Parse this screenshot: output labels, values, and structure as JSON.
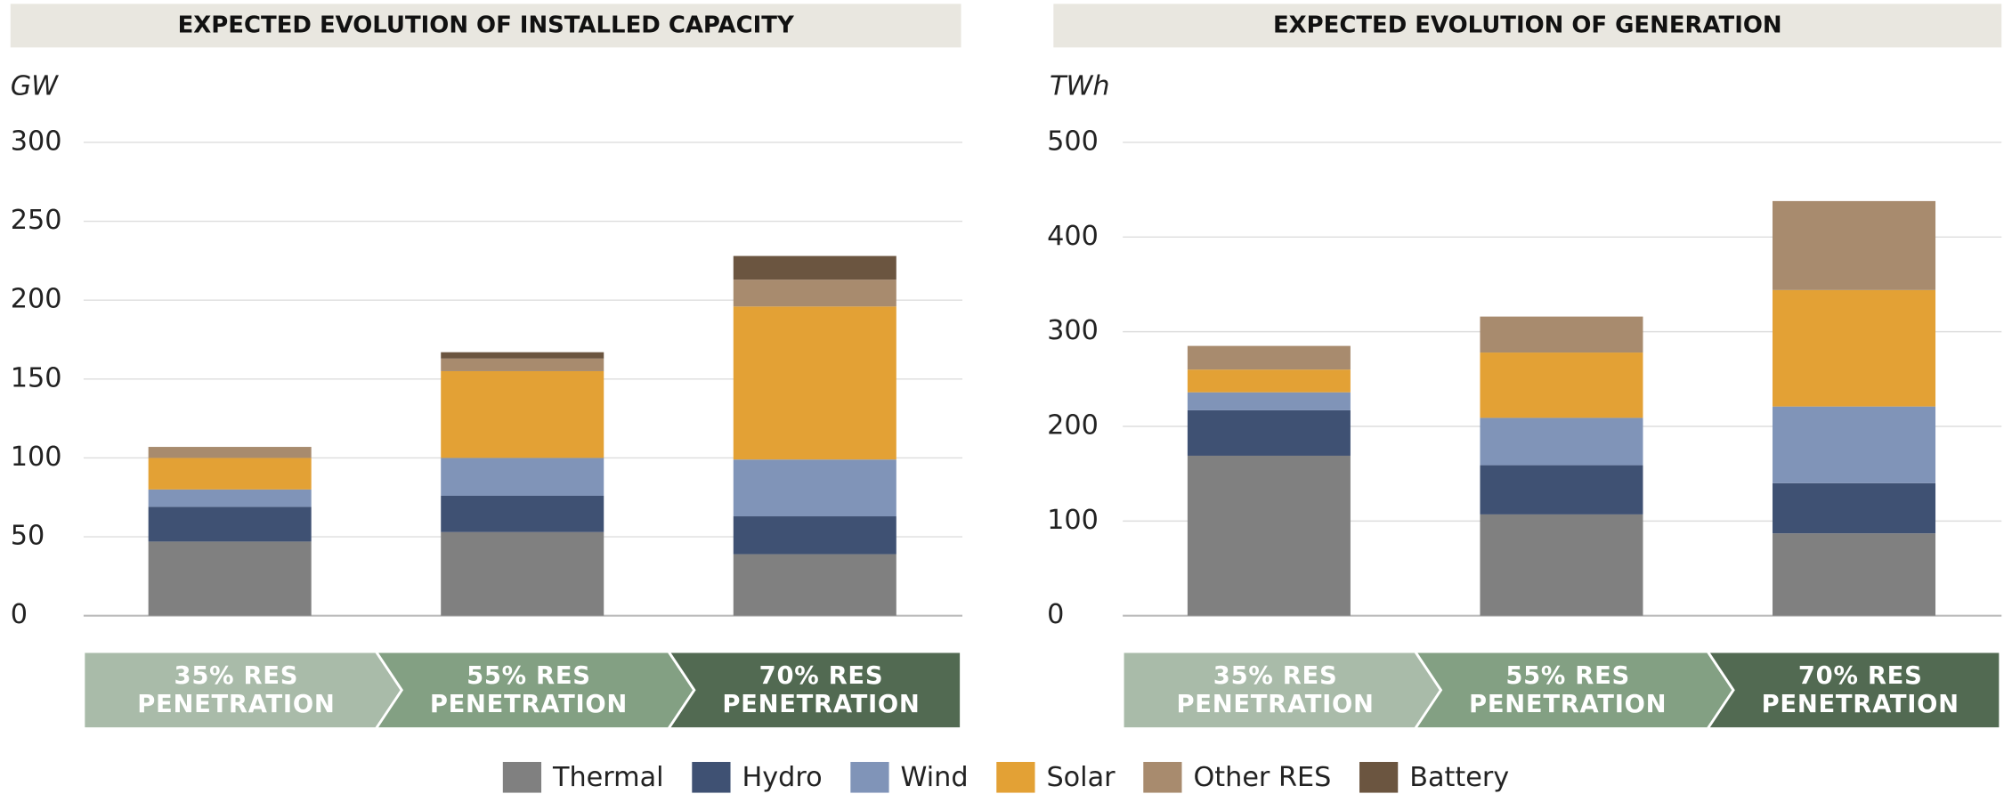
{
  "chart_data": [
    {
      "type": "bar",
      "stacked": true,
      "title": "EXPECTED EVOLUTION OF INSTALLED CAPACITY",
      "y_label": "GW",
      "categories": [
        "35% RES\nPENETRATION",
        "55% RES\nPENETRATION",
        "70% RES\nPENETRATION"
      ],
      "category_colors": [
        "#a9bba9",
        "#83a083",
        "#526a52"
      ],
      "series": [
        {
          "name": "Thermal",
          "color": "#808080",
          "values": [
            47,
            53,
            39
          ]
        },
        {
          "name": "Hydro",
          "color": "#3f5173",
          "values": [
            22,
            23,
            24
          ]
        },
        {
          "name": "Wind",
          "color": "#8094b8",
          "values": [
            11,
            24,
            36
          ]
        },
        {
          "name": "Solar",
          "color": "#e3a135",
          "values": [
            20,
            55,
            97
          ]
        },
        {
          "name": "Other RES",
          "color": "#a88b6e",
          "values": [
            7,
            8,
            17
          ]
        },
        {
          "name": "Battery",
          "color": "#6b5540",
          "values": [
            0,
            4,
            15
          ]
        }
      ],
      "ylim": [
        0,
        300
      ],
      "yticks": [
        0,
        50,
        100,
        150,
        200,
        250,
        300
      ],
      "grid": true
    },
    {
      "type": "bar",
      "stacked": true,
      "title": "EXPECTED EVOLUTION OF GENERATION",
      "y_label": "TWh",
      "categories": [
        "35% RES\nPENETRATION",
        "55% RES\nPENETRATION",
        "70% RES\nPENETRATION"
      ],
      "category_colors": [
        "#a9bba9",
        "#83a083",
        "#526a52"
      ],
      "series": [
        {
          "name": "Thermal",
          "color": "#808080",
          "values": [
            169,
            107,
            87
          ]
        },
        {
          "name": "Hydro",
          "color": "#3f5173",
          "values": [
            48,
            52,
            53
          ]
        },
        {
          "name": "Wind",
          "color": "#8094b8",
          "values": [
            19,
            50,
            81
          ]
        },
        {
          "name": "Solar",
          "color": "#e3a135",
          "values": [
            24,
            69,
            123
          ]
        },
        {
          "name": "Other RES",
          "color": "#a88b6e",
          "values": [
            25,
            38,
            94
          ]
        }
      ],
      "ylim": [
        0,
        500
      ],
      "yticks": [
        0,
        100,
        200,
        300,
        400,
        500
      ],
      "grid": true
    }
  ]
}
